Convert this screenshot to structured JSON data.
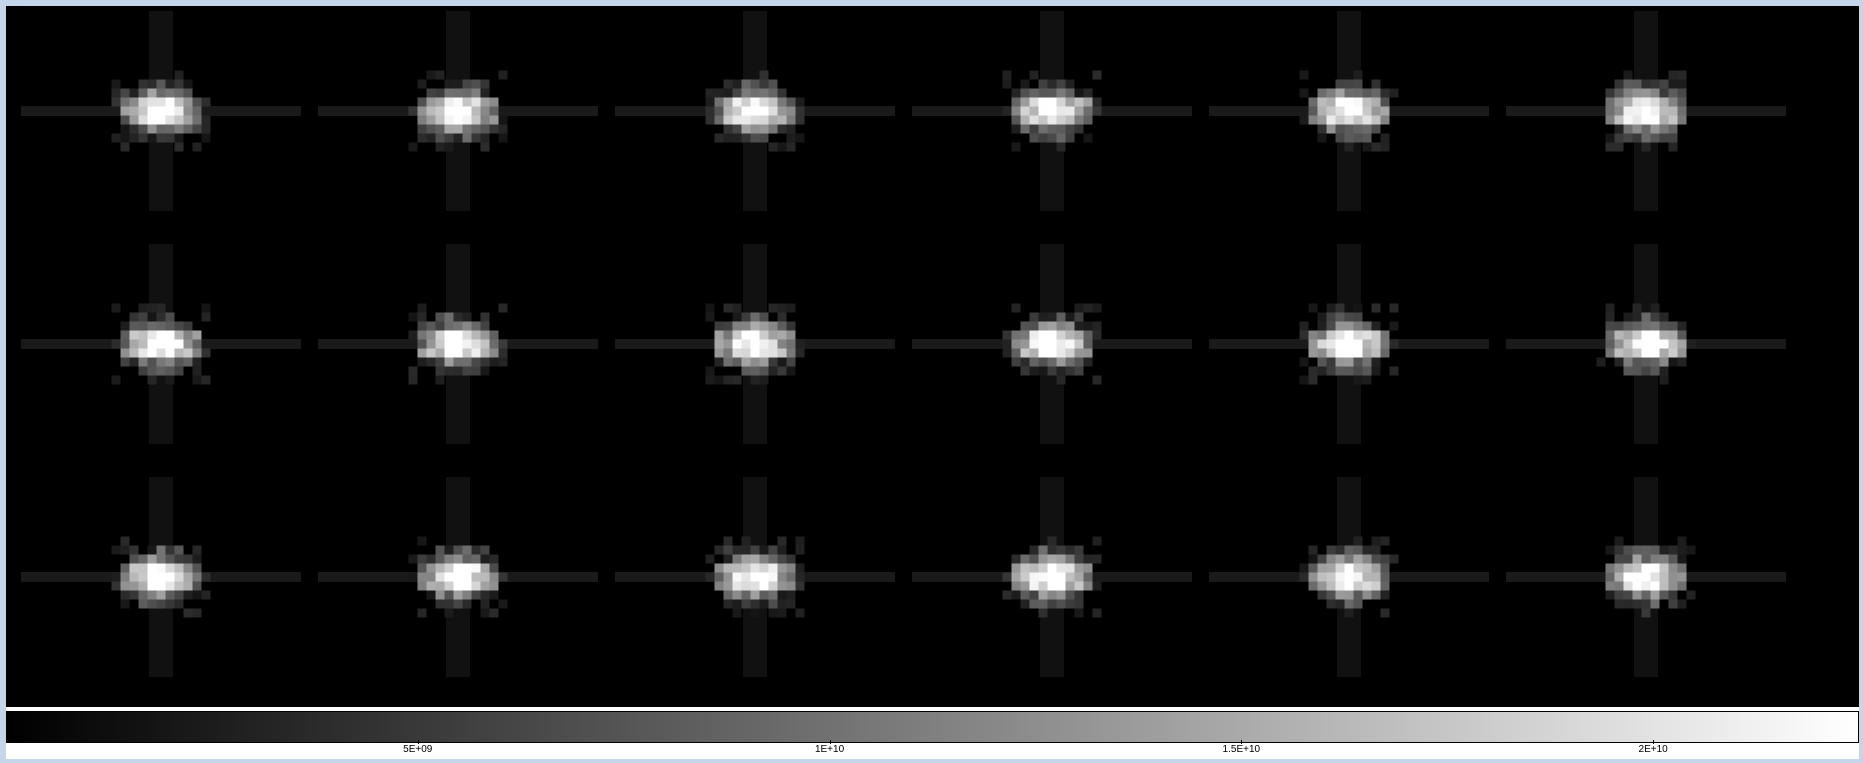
{
  "viewer": {
    "corner_label": "",
    "stamp_image_alt": "Grid of 18 point-source stamps"
  },
  "stamps": {
    "rows": 3,
    "cols": 6
  },
  "colorbar": {
    "min_color": "#000000",
    "max_color": "#ffffff",
    "ticks": [
      {
        "label": "5E+09",
        "value": 5000000000
      },
      {
        "label": "1E+10",
        "value": 10000000000
      },
      {
        "label": "1.5E+10",
        "value": 15000000000
      },
      {
        "label": "2E+10",
        "value": 20000000000
      }
    ],
    "range": [
      0,
      22500000000
    ]
  }
}
